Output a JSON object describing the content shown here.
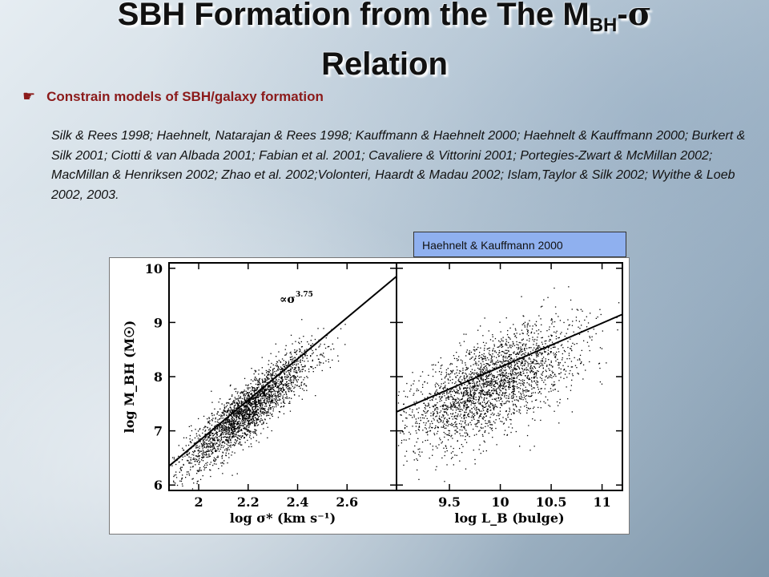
{
  "slide": {
    "title_part1": "SBH Formation from the The M",
    "title_sub": "BH",
    "title_dash": "-",
    "title_sigma": "σ",
    "title_line2": "Relation",
    "bullet_mark": "☛",
    "bullet_text": "Constrain models of SBH/galaxy formation",
    "references": "Silk & Rees 1998; Haehnelt, Natarajan & Rees 1998; Kauffmann & Haehnelt 2000; Haehnelt & Kauffmann 2000; Burkert & Silk 2001;  Ciotti & van Albada 2001; Fabian et al. 2001; Cavaliere & Vittorini 2001; Portegies-Zwart & McMillan 2002; MacMillan & Henriksen 2002; Zhao et al. 2002;Volonteri, Haardt & Madau 2002; Islam,Taylor & Silk 2002; Wyithe & Loeb 2002, 2003.",
    "figure_caption": "Haehnelt & Kauffmann 2000"
  },
  "chart_data": [
    {
      "type": "scatter",
      "xlabel": "log σ* (km s⁻¹)",
      "ylabel": "log M_BH (M☉)",
      "xlim": [
        1.88,
        2.8
      ],
      "ylim": [
        5.9,
        10.1
      ],
      "xticks": [
        "2",
        "2.2",
        "2.4",
        "2.6"
      ],
      "yticks": [
        "6",
        "7",
        "8",
        "9",
        "10"
      ],
      "annotation": "∝σ",
      "annotation_exponent": "3.75",
      "fit_line": {
        "x": [
          1.88,
          2.8
        ],
        "y": [
          6.35,
          9.85
        ]
      }
    },
    {
      "type": "scatter",
      "xlabel": "log L_B (bulge)",
      "ylabel": "",
      "xlim": [
        8.98,
        11.2
      ],
      "ylim": [
        5.9,
        10.1
      ],
      "xticks": [
        "9.5",
        "10",
        "10.5",
        "11"
      ],
      "yticks": [],
      "fit_line": {
        "x": [
          8.98,
          11.2
        ],
        "y": [
          7.35,
          9.15
        ]
      }
    }
  ],
  "colors": {
    "bullet": "#8b1a1a",
    "caption_bg": "#8fb0ef"
  }
}
